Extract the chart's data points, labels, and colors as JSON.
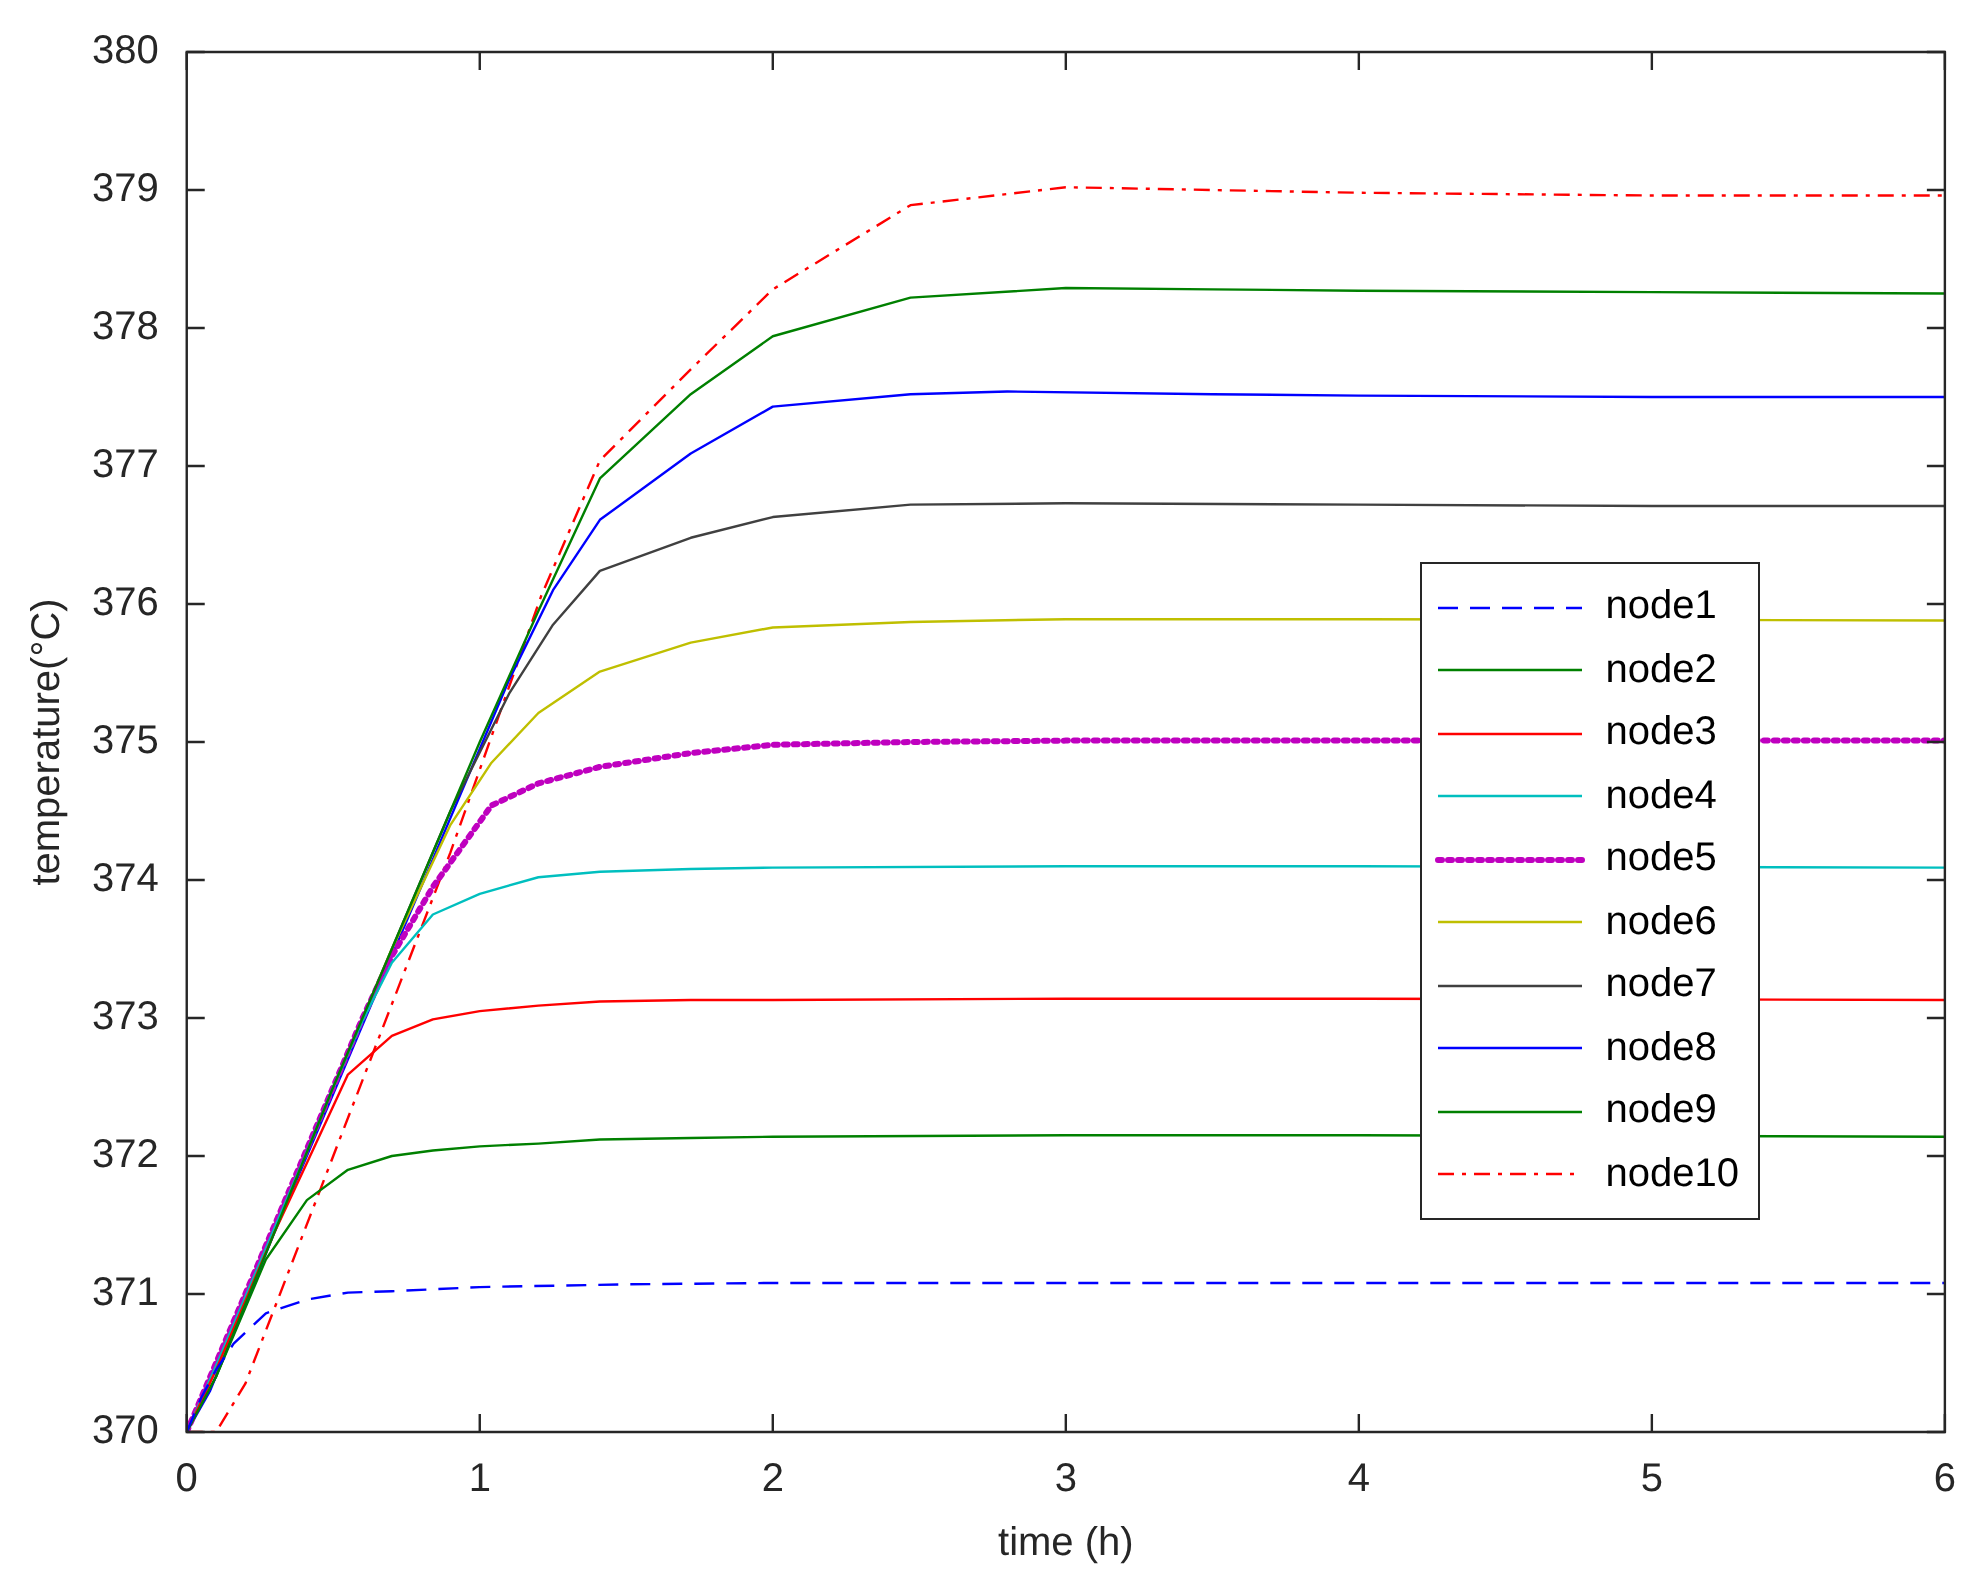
{
  "chart_data": {
    "type": "line",
    "xlabel": "time (h)",
    "ylabel": "temperature(°C)",
    "xlim": [
      0,
      6
    ],
    "xticks": [
      0,
      1,
      2,
      3,
      4,
      5,
      6
    ],
    "ylim": [
      370,
      380
    ],
    "yticks": [
      370,
      371,
      372,
      373,
      374,
      375,
      376,
      377,
      378,
      379,
      380
    ],
    "grid": false,
    "legend": "right",
    "marker": "none",
    "series": [
      {
        "name": "node1",
        "color": "#0000ff",
        "line_style": "dashed",
        "x": [
          0,
          0.05,
          0.1,
          0.16,
          0.27,
          0.41,
          0.55,
          0.7,
          1,
          1.5,
          2,
          3,
          4,
          6
        ],
        "values": [
          370,
          370.25,
          370.45,
          370.64,
          370.86,
          370.96,
          371.01,
          371.02,
          371.05,
          371.07,
          371.08,
          371.08,
          371.08,
          371.08
        ]
      },
      {
        "name": "node2",
        "color": "#008000",
        "line_style": "solid",
        "x": [
          0,
          0.1,
          0.3,
          0.5,
          0.7,
          1,
          1.2,
          1.41,
          1.72,
          2,
          2.47,
          3,
          3.5,
          4,
          5,
          6
        ],
        "values": [
          370,
          370.4,
          371.45,
          372.5,
          373.5,
          375.0,
          375.95,
          376.91,
          377.52,
          377.94,
          378.22,
          378.29,
          378.28,
          378.27,
          378.26,
          378.25
        ]
      },
      {
        "name": "node3",
        "color": "#ff0000",
        "line_style": "solid",
        "x": [
          0,
          0.1,
          0.2,
          0.3,
          0.41,
          0.55,
          0.7,
          0.84,
          1,
          1.2,
          1.41,
          1.72,
          2,
          3,
          4,
          6
        ],
        "values": [
          370,
          370.45,
          370.95,
          371.45,
          371.95,
          372.59,
          372.87,
          372.99,
          373.05,
          373.09,
          373.12,
          373.13,
          373.13,
          373.14,
          373.14,
          373.13
        ]
      },
      {
        "name": "node4",
        "color": "#00bfbf",
        "line_style": "solid",
        "x": [
          0,
          0.1,
          0.2,
          0.3,
          0.4,
          0.5,
          0.6,
          0.7,
          0.84,
          1,
          1.2,
          1.41,
          1.72,
          2,
          3,
          4,
          6
        ],
        "values": [
          370,
          370.48,
          370.98,
          371.48,
          371.98,
          372.5,
          372.98,
          373.4,
          373.75,
          373.9,
          374.02,
          374.06,
          374.08,
          374.09,
          374.1,
          374.1,
          374.09
        ]
      },
      {
        "name": "node5",
        "color": "#bf00bf",
        "line_style": "dotted",
        "x": [
          0,
          0.1,
          0.2,
          0.3,
          0.4,
          0.5,
          0.6,
          0.7,
          0.84,
          1.04,
          1.2,
          1.41,
          1.72,
          2,
          2.47,
          3,
          4,
          6
        ],
        "values": [
          370,
          370.5,
          371.0,
          371.5,
          372.0,
          372.5,
          373.0,
          373.45,
          373.95,
          374.54,
          374.7,
          374.82,
          374.92,
          374.98,
          375.0,
          375.01,
          375.01,
          375.01
        ]
      },
      {
        "name": "node6",
        "color": "#bfbf00",
        "line_style": "solid",
        "x": [
          0.5,
          0.7,
          0.9,
          1.04,
          1.2,
          1.41,
          1.72,
          2,
          2.47,
          3,
          4,
          6
        ],
        "values": [
          372.5,
          373.5,
          374.4,
          374.85,
          375.21,
          375.51,
          375.72,
          375.83,
          375.87,
          375.89,
          375.89,
          375.88
        ]
      },
      {
        "name": "node7",
        "color": "#404040",
        "line_style": "solid",
        "x": [
          0,
          0.1,
          0.3,
          0.5,
          0.7,
          0.9,
          1.1,
          1.25,
          1.41,
          1.72,
          2,
          2.47,
          3,
          4,
          5,
          6
        ],
        "values": [
          370,
          370.5,
          371.5,
          372.5,
          373.5,
          374.5,
          375.35,
          375.85,
          376.24,
          376.48,
          376.63,
          376.72,
          376.73,
          376.72,
          376.71,
          376.71
        ]
      },
      {
        "name": "node8",
        "color": "#0000ff",
        "line_style": "solid",
        "x": [
          0,
          0.08,
          0.3,
          0.5,
          0.7,
          0.9,
          1.1,
          1.25,
          1.41,
          1.72,
          2,
          2.47,
          2.8,
          3.5,
          4,
          5,
          6
        ],
        "values": [
          370,
          370.3,
          371.45,
          372.45,
          373.45,
          374.45,
          375.45,
          376.1,
          376.61,
          377.09,
          377.43,
          377.52,
          377.54,
          377.52,
          377.51,
          377.5,
          377.5
        ]
      },
      {
        "name": "node9",
        "color": "#008000",
        "line_style": "solid",
        "x": [
          0,
          0.1,
          0.2,
          0.27,
          0.41,
          0.55,
          0.7,
          0.84,
          1,
          1.2,
          1.41,
          1.72,
          2,
          3,
          4,
          6
        ],
        "values": [
          370,
          370.4,
          370.9,
          371.25,
          371.68,
          371.9,
          372.0,
          372.04,
          372.07,
          372.09,
          372.12,
          372.13,
          372.14,
          372.15,
          372.15,
          372.14
        ]
      },
      {
        "name": "node10",
        "color": "#ff0000",
        "line_style": "dashdot",
        "x": [
          0,
          0.1,
          0.2,
          0.3,
          0.5,
          0.7,
          0.9,
          1.1,
          1.21,
          1.41,
          1.72,
          2,
          2.47,
          3,
          3.5,
          4,
          5,
          6
        ],
        "values": [
          370,
          370,
          370.35,
          370.9,
          372.0,
          373.1,
          374.2,
          375.4,
          376.06,
          377.04,
          377.7,
          378.28,
          378.89,
          379.02,
          379.0,
          378.98,
          378.96,
          378.96
        ]
      }
    ]
  }
}
